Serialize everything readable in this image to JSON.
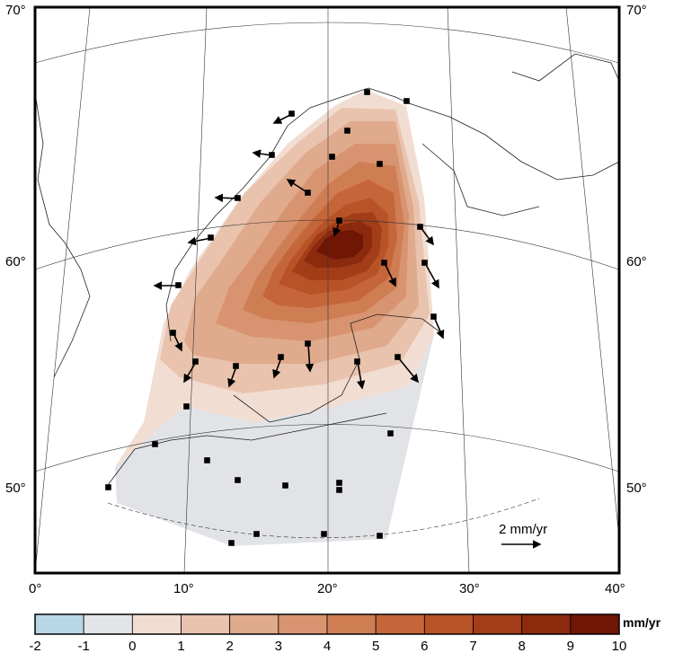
{
  "map": {
    "lon_labels": [
      "0°",
      "10°",
      "20°",
      "30°",
      "40°"
    ],
    "lat_labels_left": [
      "50°",
      "60°",
      "70°"
    ],
    "lat_labels_right": [
      "50°",
      "60°",
      "70°"
    ],
    "scale_bar_label": "2 mm/yr",
    "colors": {
      "land_outline": "#222222",
      "neutral_fill": "#e1e3e6",
      "vector": "#000000"
    }
  },
  "colorbar": {
    "unit": "mm/yr",
    "ticks": [
      "-2",
      "-1",
      "0",
      "1",
      "2",
      "3",
      "4",
      "5",
      "6",
      "7",
      "8",
      "9",
      "10"
    ],
    "colors": [
      "#b9d6e6",
      "#e2e4e7",
      "#f2ddd2",
      "#e9c3ad",
      "#e0aa8d",
      "#d89470",
      "#cf7d53",
      "#c5663a",
      "#b85227",
      "#a33d17",
      "#8c2a0e",
      "#6f1605"
    ]
  }
}
